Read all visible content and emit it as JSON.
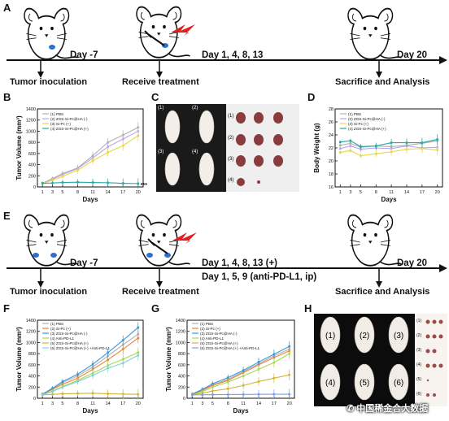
{
  "panels": {
    "A": "A",
    "B": "B",
    "C": "C",
    "D": "D",
    "E": "E",
    "F": "F",
    "G": "G",
    "H": "H"
  },
  "timeline1": {
    "days": [
      "Day -7",
      "Day 1, 4, 8, 13",
      "Day 20"
    ],
    "events": [
      "Tumor inoculation",
      "Receive treatment",
      "Sacrifice and Analysis"
    ]
  },
  "timeline2": {
    "days": [
      "Day -7",
      "Day 1, 4, 8, 13 (+)",
      "Day 20"
    ],
    "line2": "Day 1, 5, 9 (anti-PD-L1, ip)",
    "events": [
      "Tumor inoculation",
      "Receive treatment",
      "Sacrifice and Analysis"
    ]
  },
  "photoC": {
    "mice": [
      "(1)",
      "(2)",
      "(3)",
      "(4)"
    ],
    "tumors": [
      "(1)",
      "(2)",
      "(3)",
      "(4)"
    ]
  },
  "photoH": {
    "mice": [
      "(1)",
      "(2)",
      "(3)",
      "(4)",
      "(5)",
      "(6)"
    ],
    "strip": [
      "(1)",
      "(2)",
      "(3)",
      "(4)",
      "(5)",
      "(6)"
    ]
  },
  "watermark": "中国稀金合大数据",
  "colors": {
    "c1": "#b0b0b0",
    "c2": "#b9a6e8",
    "c3": "#e9d54a",
    "c4": "#2aa7a7",
    "f2": "#e8833a",
    "f3": "#3a97d6",
    "f4": "#a7d84e",
    "f5": "#d4b43c",
    "f6": "#7fd3d6",
    "g1": "#b0b0b0",
    "g2": "#e8833a",
    "g3": "#3a97d6",
    "g4": "#a7d84e",
    "g5": "#d4b43c",
    "g6": "#7aa0ea"
  },
  "chart_data": [
    {
      "id": "B",
      "type": "line",
      "xlabel": "Days",
      "ylabel": "Tumor Volume (mm³)",
      "x": [
        1,
        3,
        5,
        8,
        11,
        14,
        17,
        20
      ],
      "xticks": [
        "1",
        "3",
        "5",
        "8",
        "11",
        "14",
        "17",
        "20"
      ],
      "ylim": [
        0,
        1400
      ],
      "yticks": [
        "0",
        "200",
        "400",
        "600",
        "800",
        "1000",
        "1200",
        "1400"
      ],
      "series": [
        {
          "name": "(1) PBS",
          "color": "#b0b0b0",
          "values": [
            70,
            150,
            240,
            340,
            560,
            800,
            930,
            1070
          ]
        },
        {
          "name": "(2) ZGS-Si-Pc@HA (-)",
          "color": "#b9a6e8",
          "values": [
            65,
            140,
            220,
            330,
            520,
            720,
            860,
            1000
          ]
        },
        {
          "name": "(3) Si-Pc (+)",
          "color": "#e9d54a",
          "values": [
            60,
            120,
            190,
            300,
            470,
            620,
            740,
            920
          ]
        },
        {
          "name": "(4) ZGS-Si-Pc@HA (+)",
          "color": "#2aa7a7",
          "values": [
            65,
            70,
            80,
            85,
            80,
            75,
            65,
            60
          ]
        }
      ],
      "annotation": "***"
    },
    {
      "id": "D",
      "type": "line",
      "xlabel": "Days",
      "ylabel": "Body Weight (g)",
      "x": [
        1,
        3,
        5,
        8,
        11,
        14,
        17,
        20
      ],
      "xticks": [
        "1",
        "3",
        "5",
        "8",
        "11",
        "14",
        "17",
        "20"
      ],
      "ylim": [
        16,
        28
      ],
      "yticks": [
        "16",
        "18",
        "20",
        "22",
        "24",
        "26",
        "28"
      ],
      "series": [
        {
          "name": "(1) PBS",
          "color": "#b0b0b0",
          "values": [
            22.4,
            22.7,
            22.1,
            22.3,
            22.2,
            22.4,
            22.7,
            23.1
          ]
        },
        {
          "name": "(2) ZGS-Si-Pc@HA (-)",
          "color": "#b9a6e8",
          "values": [
            21.9,
            22.3,
            21.8,
            22.0,
            21.9,
            22.3,
            22.0,
            22.1
          ]
        },
        {
          "name": "(3) Si-Pc (+)",
          "color": "#e9d54a",
          "values": [
            21.3,
            21.6,
            20.8,
            21.1,
            21.4,
            21.8,
            21.9,
            21.7
          ]
        },
        {
          "name": "(4) ZGS-Si-Pc@HA (+)",
          "color": "#2aa7a7",
          "values": [
            22.9,
            23.1,
            22.2,
            22.3,
            22.8,
            22.8,
            22.8,
            23.3
          ]
        }
      ]
    },
    {
      "id": "F",
      "type": "line",
      "xlabel": "Days",
      "ylabel": "Tumor Volume (mm³)",
      "x": [
        1,
        3,
        5,
        8,
        11,
        14,
        17,
        20
      ],
      "xticks": [
        "1",
        "3",
        "5",
        "8",
        "11",
        "14",
        "17",
        "20"
      ],
      "ylim": [
        0,
        1400
      ],
      "yticks": [
        "0",
        "200",
        "400",
        "600",
        "800",
        "1000",
        "1200",
        "1400"
      ],
      "series": [
        {
          "name": "(1) PBS",
          "color": "#b0b0b0",
          "values": [
            70,
            170,
            280,
            400,
            560,
            760,
            960,
            1150
          ]
        },
        {
          "name": "(2) Si-Pc (+)",
          "color": "#e8833a",
          "values": [
            70,
            160,
            250,
            360,
            520,
            690,
            880,
            1080
          ]
        },
        {
          "name": "(3) ZGS-Si-Pc@HA (-)",
          "color": "#3a97d6",
          "values": [
            75,
            180,
            300,
            430,
            610,
            820,
            1040,
            1270
          ]
        },
        {
          "name": "(4) Anti-PD-L1",
          "color": "#a7d84e",
          "values": [
            65,
            130,
            210,
            320,
            450,
            590,
            700,
            820
          ]
        },
        {
          "name": "(5) ZGS-Si-Pc@HA (+)",
          "color": "#d4b43c",
          "values": [
            60,
            70,
            80,
            85,
            90,
            80,
            75,
            70
          ]
        },
        {
          "name": "(6) ZGS-Si-Pc@HA (+) +Anti-PD-L1",
          "color": "#7fd3d6",
          "values": [
            60,
            120,
            200,
            300,
            410,
            540,
            630,
            770
          ]
        }
      ]
    },
    {
      "id": "G",
      "type": "line",
      "xlabel": "Days",
      "ylabel": "Tumor Volume (mm³)",
      "x": [
        1,
        3,
        5,
        8,
        11,
        14,
        17,
        20
      ],
      "xticks": [
        "1",
        "3",
        "5",
        "8",
        "11",
        "14",
        "17",
        "20"
      ],
      "ylim": [
        0,
        1400
      ],
      "yticks": [
        "0",
        "200",
        "400",
        "600",
        "800",
        "1000",
        "1200",
        "1400"
      ],
      "series": [
        {
          "name": "(1) PBS",
          "color": "#b0b0b0",
          "values": [
            70,
            150,
            240,
            340,
            480,
            620,
            760,
            880
          ]
        },
        {
          "name": "(2) Si-Pc (+)",
          "color": "#e8833a",
          "values": [
            65,
            140,
            230,
            320,
            460,
            600,
            730,
            850
          ]
        },
        {
          "name": "(3) ZGS-Si-Pc@HA (-)",
          "color": "#3a97d6",
          "values": [
            75,
            160,
            260,
            370,
            500,
            650,
            790,
            930
          ]
        },
        {
          "name": "(4) Anti-PD-L1",
          "color": "#a7d84e",
          "values": [
            60,
            120,
            200,
            290,
            400,
            520,
            640,
            800
          ]
        },
        {
          "name": "(5) ZGS-Si-Pc@HA (+)",
          "color": "#d4b43c",
          "values": [
            60,
            90,
            130,
            170,
            230,
            300,
            360,
            420
          ]
        },
        {
          "name": "(6) ZGS-Si-Pc@HA (+) +Anti-PD-L1",
          "color": "#7aa0ea",
          "values": [
            60,
            62,
            65,
            66,
            68,
            70,
            72,
            72
          ]
        }
      ]
    }
  ]
}
